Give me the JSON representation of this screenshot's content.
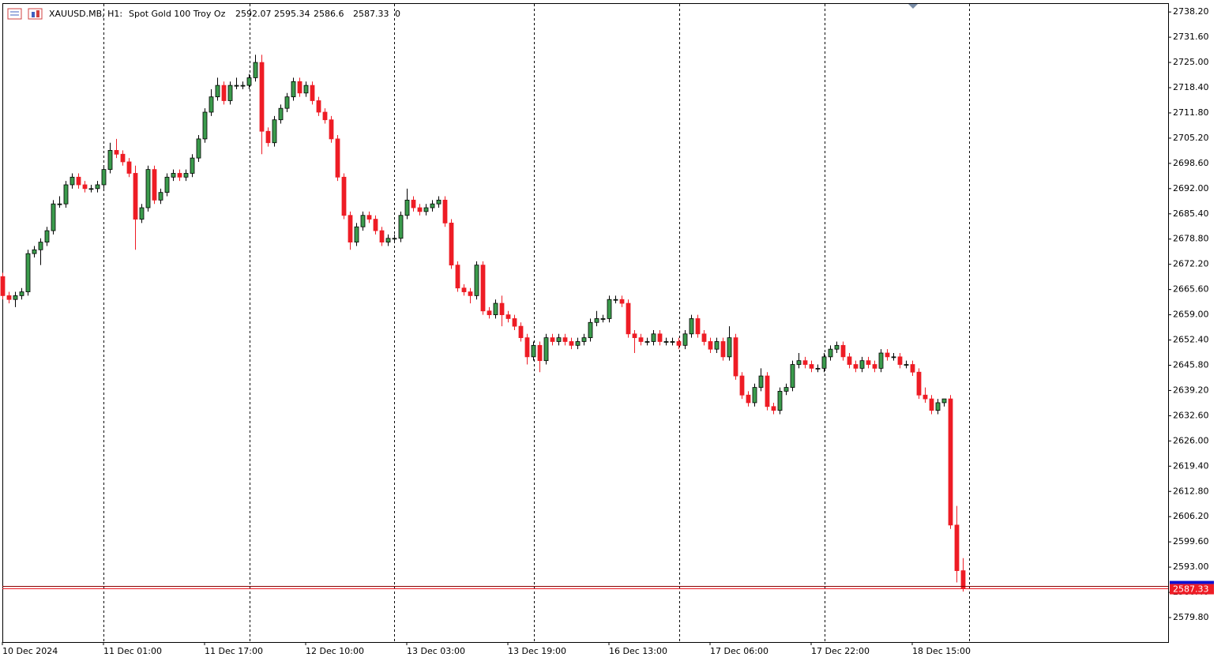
{
  "chart_data": {
    "type": "candlestick",
    "header": {
      "symbol": "XAUUSD.MB, H1:",
      "description": "Spot Gold 100 Troy Oz",
      "tail": 0
    },
    "categories": [
      "10 Dec 2024",
      null,
      null,
      null,
      null,
      null,
      null,
      null,
      null,
      null,
      null,
      null,
      null,
      null,
      null,
      null,
      "11 Dec 01:00",
      null,
      null,
      null,
      null,
      null,
      null,
      null,
      null,
      null,
      null,
      null,
      null,
      null,
      null,
      null,
      "11 Dec 17:00",
      null,
      null,
      null,
      null,
      null,
      null,
      null,
      null,
      null,
      null,
      null,
      null,
      null,
      null,
      null,
      "12 Dec 10:00",
      null,
      null,
      null,
      null,
      null,
      null,
      null,
      null,
      null,
      null,
      null,
      null,
      null,
      null,
      null,
      "13 Dec 03:00",
      null,
      null,
      null,
      null,
      null,
      null,
      null,
      null,
      null,
      null,
      null,
      null,
      null,
      null,
      null,
      "13 Dec 19:00",
      null,
      null,
      null,
      null,
      null,
      null,
      null,
      null,
      null,
      null,
      null,
      null,
      null,
      null,
      null,
      "16 Dec 13:00",
      null,
      null,
      null,
      null,
      null,
      null,
      null,
      null,
      null,
      null,
      null,
      null,
      null,
      null,
      null,
      "17 Dec 06:00",
      null,
      null,
      null,
      null,
      null,
      null,
      null,
      null,
      null,
      null,
      null,
      null,
      null,
      null,
      null,
      "17 Dec 22:00",
      null,
      null,
      null,
      null,
      null,
      null,
      null,
      null,
      null,
      null,
      null,
      null,
      null,
      null,
      null,
      "18 Dec 15:00",
      null,
      null,
      null,
      null,
      null,
      null,
      null,
      null
    ],
    "open": [
      2669,
      2664,
      2663,
      2664,
      2665,
      2675,
      2676,
      2678,
      2681,
      2688,
      2688,
      2693,
      2695,
      2693,
      2692,
      2692,
      2693,
      2697,
      2702,
      2701,
      2699,
      2696,
      2684,
      2687,
      2697,
      2689,
      2691,
      2695,
      2696,
      2695,
      2696,
      2700,
      2705,
      2712,
      2716,
      2719,
      2715,
      2719,
      2719,
      2719,
      2721,
      2725,
      2707,
      2704,
      2710,
      2713,
      2716,
      2720,
      2717,
      2719,
      2715,
      2712,
      2710,
      2705,
      2695,
      2685,
      2678,
      2682,
      2685,
      2684,
      2681,
      2678,
      2679,
      2679,
      2685,
      2689,
      2687,
      2686,
      2687,
      2688,
      2689,
      2683,
      2672,
      2666,
      2665,
      2664,
      2672,
      2660,
      2659,
      2662,
      2659,
      2658,
      2656,
      2653,
      2648,
      2651,
      2647,
      2653,
      2652,
      2653,
      2652,
      2651,
      2652,
      2653,
      2657,
      2658,
      2658,
      2663,
      2663,
      2662,
      2654,
      2653,
      2652,
      2652,
      2654,
      2652,
      2652,
      2652,
      2651,
      2654,
      2658,
      2654,
      2652,
      2650,
      2652,
      2648,
      2653,
      2643,
      2638,
      2636,
      2640,
      2643,
      2635,
      2634,
      2639,
      2640,
      2646,
      2647,
      2646,
      2645,
      2645,
      2648,
      2650,
      2651,
      2648,
      2646,
      2645,
      2647,
      2646,
      2645,
      2649,
      2648,
      2648,
      2646,
      2646,
      2644,
      2638,
      2637,
      2634,
      2636,
      2637,
      2604,
      2592.07
    ],
    "high": [
      2670,
      2665,
      2665,
      2666,
      2676,
      2677,
      2679,
      2682,
      2689,
      2690,
      2694,
      2696,
      2696,
      2694,
      2693,
      2694,
      2698,
      2704,
      2705,
      2702,
      2700,
      2698,
      2688,
      2698,
      2698,
      2692,
      2696,
      2697,
      2697,
      2697,
      2701,
      2706,
      2713,
      2718,
      2721,
      2720,
      2720,
      2721,
      2720,
      2722,
      2727,
      2727,
      2708,
      2711,
      2714,
      2717,
      2721,
      2721,
      2720,
      2720,
      2716,
      2713,
      2711,
      2706,
      2696,
      2686,
      2683,
      2686,
      2686,
      2685,
      2682,
      2680,
      2680,
      2686,
      2692,
      2690,
      2688,
      2688,
      2689,
      2690,
      2690,
      2684,
      2673,
      2667,
      2666,
      2673,
      2673,
      2661,
      2663,
      2664,
      2660,
      2659,
      2657,
      2654,
      2652,
      2652,
      2654,
      2654,
      2654,
      2654,
      2653,
      2653,
      2654,
      2658,
      2660,
      2659,
      2664,
      2664,
      2664,
      2663,
      2655,
      2654,
      2653,
      2655,
      2655,
      2653,
      2653,
      2653,
      2655,
      2659,
      2659,
      2655,
      2653,
      2653,
      2653,
      2656,
      2654,
      2644,
      2639,
      2641,
      2645,
      2644,
      2636,
      2640,
      2641,
      2647,
      2649,
      2648,
      2647,
      2646,
      2649,
      2651,
      2652,
      2652,
      2649,
      2647,
      2648,
      2648,
      2647,
      2650,
      2650,
      2649,
      2649,
      2647,
      2647,
      2645,
      2640,
      2638,
      2637,
      2637,
      2638,
      2609,
      2595.34
    ],
    "low": [
      2663,
      2662,
      2661,
      2663,
      2664,
      2674,
      2672,
      2677,
      2680,
      2687,
      2687,
      2692,
      2692,
      2691,
      2691,
      2691,
      2692,
      2696,
      2700,
      2698,
      2695,
      2676,
      2683,
      2686,
      2688,
      2688,
      2690,
      2694,
      2694,
      2694,
      2695,
      2699,
      2704,
      2711,
      2715,
      2714,
      2714,
      2718,
      2718,
      2718,
      2720,
      2701,
      2703,
      2703,
      2709,
      2712,
      2715,
      2716,
      2716,
      2714,
      2711,
      2709,
      2704,
      2694,
      2684,
      2676,
      2677,
      2681,
      2683,
      2680,
      2677,
      2677,
      2678,
      2678,
      2684,
      2686,
      2685,
      2685,
      2686,
      2687,
      2682,
      2671,
      2665,
      2664,
      2662,
      2663,
      2659,
      2658,
      2658,
      2656,
      2657,
      2655,
      2652,
      2646,
      2647,
      2644,
      2646,
      2651,
      2651,
      2651,
      2650,
      2650,
      2651,
      2652,
      2656,
      2657,
      2657,
      2662,
      2661,
      2653,
      2649,
      2651,
      2651,
      2651,
      2651,
      2651,
      2651,
      2650,
      2650,
      2653,
      2653,
      2651,
      2649,
      2649,
      2647,
      2647,
      2642,
      2637,
      2635,
      2635,
      2639,
      2634,
      2633,
      2633,
      2638,
      2639,
      2645,
      2645,
      2644,
      2644,
      2644,
      2647,
      2649,
      2647,
      2645,
      2644,
      2644,
      2645,
      2644,
      2644,
      2647,
      2647,
      2645,
      2645,
      2643,
      2637,
      2636,
      2633,
      2633,
      2635,
      2603,
      2589,
      2586.6
    ],
    "close": [
      2664,
      2663,
      2664,
      2665,
      2675,
      2676,
      2678,
      2681,
      2688,
      2688,
      2693,
      2695,
      2693,
      2692,
      2692,
      2693,
      2697,
      2702,
      2701,
      2699,
      2696,
      2684,
      2687,
      2697,
      2689,
      2691,
      2695,
      2696,
      2695,
      2696,
      2700,
      2705,
      2712,
      2716,
      2719,
      2715,
      2719,
      2719,
      2719,
      2721,
      2725,
      2707,
      2704,
      2710,
      2713,
      2716,
      2720,
      2717,
      2719,
      2715,
      2712,
      2710,
      2705,
      2695,
      2685,
      2678,
      2682,
      2685,
      2684,
      2681,
      2678,
      2679,
      2679,
      2685,
      2689,
      2687,
      2686,
      2687,
      2688,
      2689,
      2683,
      2672,
      2666,
      2665,
      2664,
      2672,
      2660,
      2659,
      2662,
      2659,
      2658,
      2656,
      2653,
      2648,
      2651,
      2647,
      2653,
      2652,
      2653,
      2652,
      2651,
      2652,
      2653,
      2657,
      2658,
      2658,
      2663,
      2663,
      2662,
      2654,
      2653,
      2652,
      2652,
      2654,
      2652,
      2652,
      2652,
      2651,
      2654,
      2658,
      2654,
      2652,
      2650,
      2652,
      2648,
      2653,
      2643,
      2638,
      2636,
      2640,
      2643,
      2635,
      2634,
      2639,
      2640,
      2646,
      2647,
      2646,
      2645,
      2645,
      2648,
      2650,
      2651,
      2648,
      2646,
      2645,
      2647,
      2646,
      2645,
      2649,
      2648,
      2648,
      2646,
      2646,
      2644,
      2638,
      2637,
      2634,
      2636,
      2637,
      2604,
      2592.07,
      2587.33
    ],
    "up_color": "#3b9b4c",
    "down_color": "#ee1c25",
    "ylim": [
      2573.4,
      2740.3
    ],
    "yticks": [
      {
        "value": 2738.2,
        "label": "2738.20"
      },
      {
        "value": 2731.6,
        "label": "2731.60"
      },
      {
        "value": 2725,
        "label": "2725.00"
      },
      {
        "value": 2718.4,
        "label": "2718.40"
      },
      {
        "value": 2711.8,
        "label": "2711.80"
      },
      {
        "value": 2705.2,
        "label": "2705.20"
      },
      {
        "value": 2698.6,
        "label": "2698.60"
      },
      {
        "value": 2692,
        "label": "2692.00"
      },
      {
        "value": 2685.4,
        "label": "2685.40"
      },
      {
        "value": 2678.8,
        "label": "2678.80"
      },
      {
        "value": 2672.2,
        "label": "2672.20"
      },
      {
        "value": 2665.6,
        "label": "2665.60"
      },
      {
        "value": 2659,
        "label": "2659.00"
      },
      {
        "value": 2652.4,
        "label": "2652.40"
      },
      {
        "value": 2645.8,
        "label": "2645.80"
      },
      {
        "value": 2639.2,
        "label": "2639.20"
      },
      {
        "value": 2632.6,
        "label": "2632.60"
      },
      {
        "value": 2626,
        "label": "2626.00"
      },
      {
        "value": 2619.4,
        "label": "2619.40"
      },
      {
        "value": 2612.8,
        "label": "2612.80"
      },
      {
        "value": 2606.2,
        "label": "2606.20"
      },
      {
        "value": 2599.6,
        "label": "2599.60"
      },
      {
        "value": 2593,
        "label": "2593.00"
      },
      {
        "value": 2586.4,
        "label": "2586.40"
      },
      {
        "value": 2579.8,
        "label": "2579.80"
      }
    ]
  }
}
